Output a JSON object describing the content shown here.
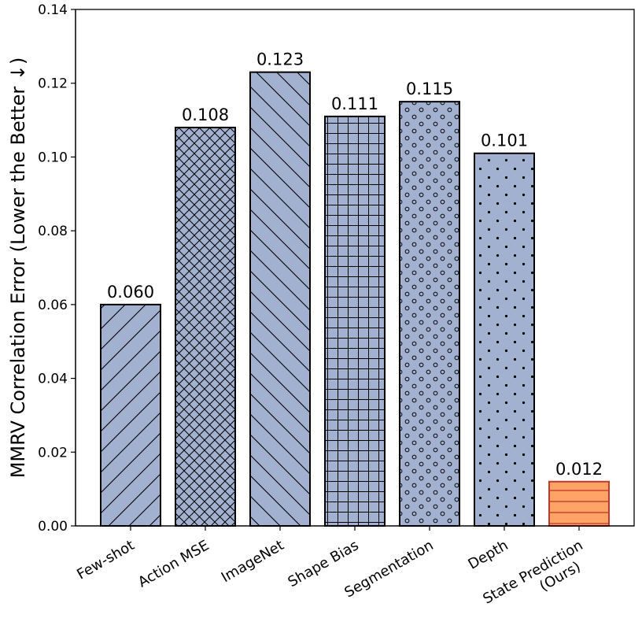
{
  "chart_data": {
    "type": "bar",
    "title": "",
    "xlabel": "",
    "ylabel": "MMRV Correlation Error (Lower the Better ↓)",
    "ylim": [
      0,
      0.14
    ],
    "yticks": [
      "0.00",
      "0.02",
      "0.04",
      "0.06",
      "0.08",
      "0.10",
      "0.12",
      "0.14"
    ],
    "grid": false,
    "categories": [
      [
        "Few-shot"
      ],
      [
        "Action MSE"
      ],
      [
        "ImageNet"
      ],
      [
        "Shape Bias"
      ],
      [
        "Segmentation"
      ],
      [
        "Depth"
      ],
      [
        "State Prediction",
        "(Ours)"
      ]
    ],
    "values": [
      0.06,
      0.108,
      0.123,
      0.111,
      0.115,
      0.101,
      0.012
    ],
    "value_labels": [
      "0.060",
      "0.108",
      "0.123",
      "0.111",
      "0.115",
      "0.101",
      "0.012"
    ],
    "hatches": [
      "diagonal-forward",
      "crosshatch",
      "diagonal-back",
      "grid",
      "circles",
      "dots",
      "horizontal"
    ],
    "colors": {
      "baseline_fill": "#a3b1d1",
      "baseline_edge": "#000000",
      "ours_fill": "#ffa366",
      "ours_edge": "#c0392b"
    }
  }
}
